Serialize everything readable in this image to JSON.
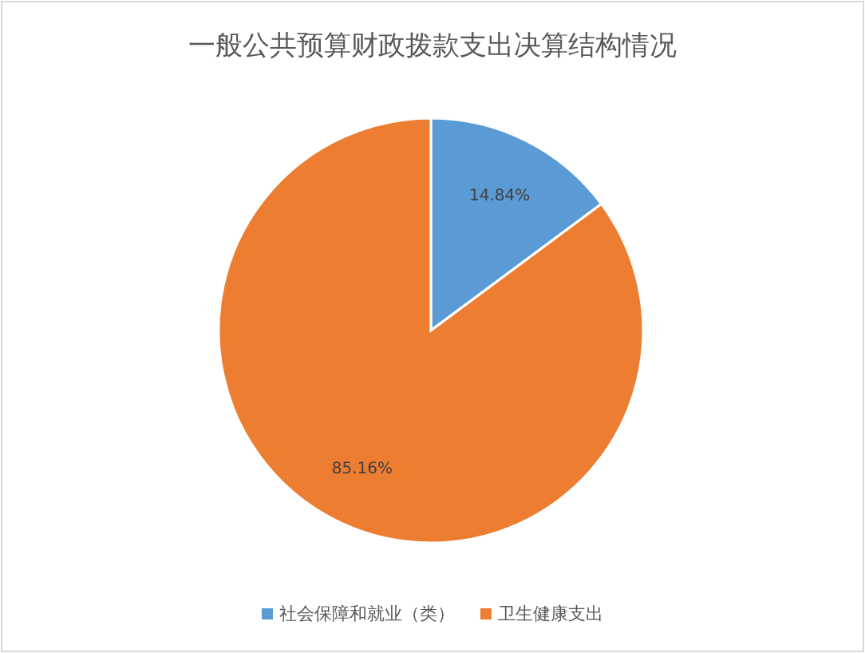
{
  "chart_data": {
    "type": "pie",
    "title": "一般公共预算财政拨款支出决算结构情况",
    "categories": [
      "社会保障和就业（类）",
      "卫生健康支出"
    ],
    "values": [
      14.84,
      85.16
    ],
    "colors": [
      "#5b9bd5",
      "#ed7d31"
    ],
    "value_labels": [
      "14.84%",
      "85.16%"
    ],
    "legend": "bottom"
  }
}
